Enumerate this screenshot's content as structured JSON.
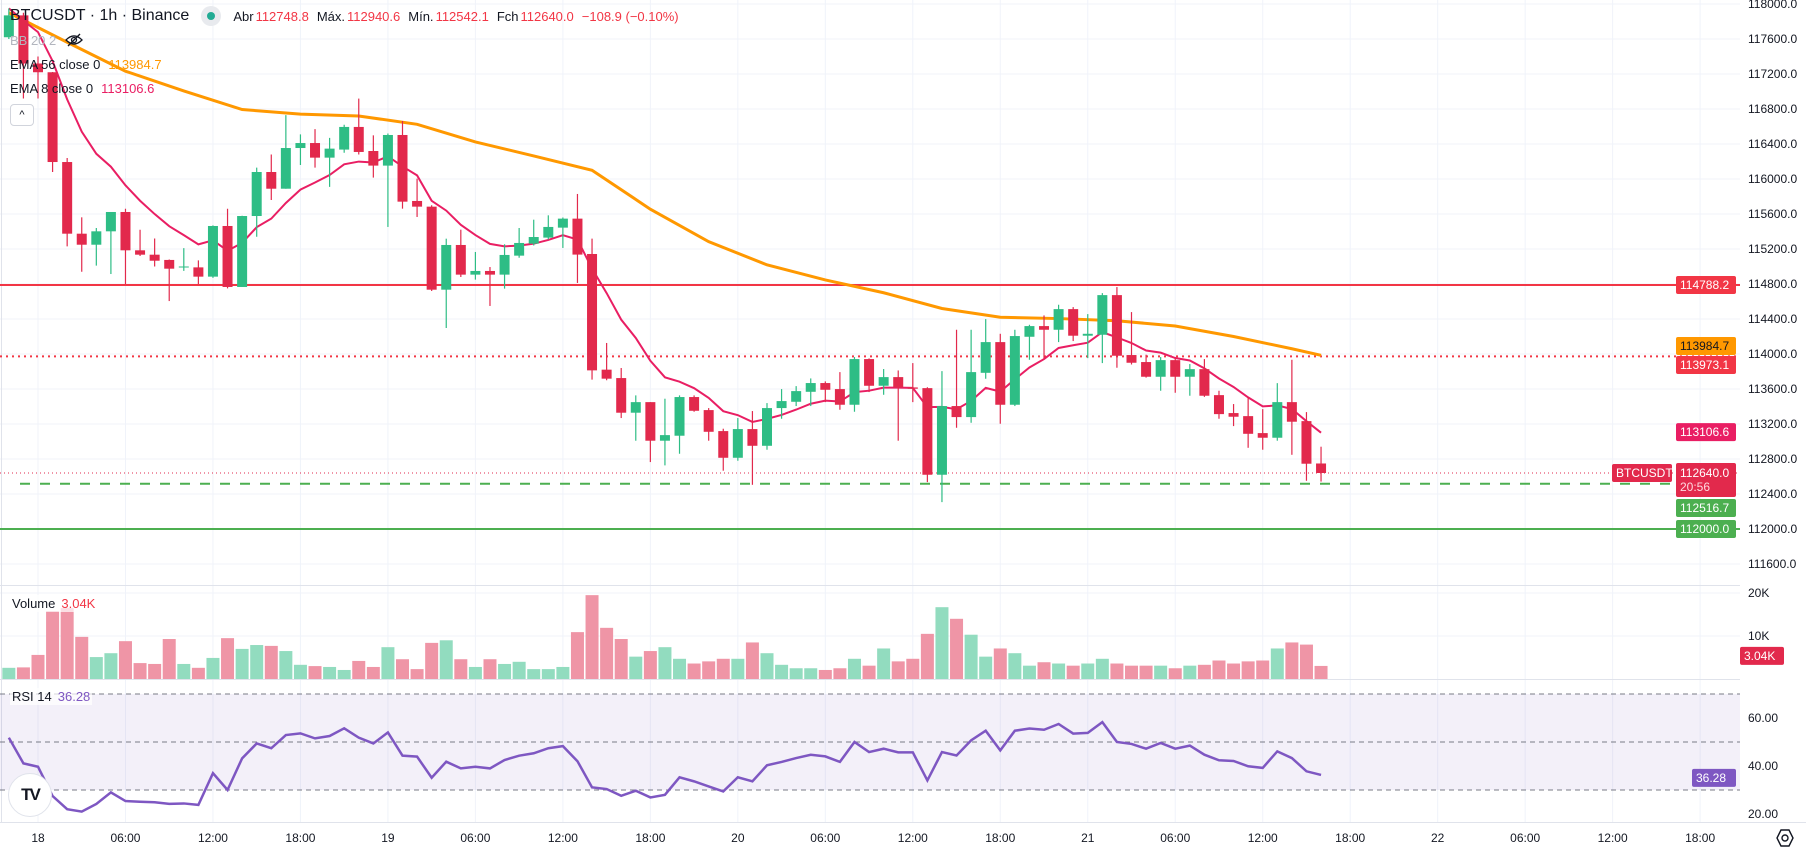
{
  "header": {
    "symbol_title": "BTCUSDT · 1h · Binance",
    "ohlc": [
      {
        "label": "Abr",
        "value": "112748.8"
      },
      {
        "label": "Máx.",
        "value": "112940.6"
      },
      {
        "label": "Mín.",
        "value": "112542.1"
      },
      {
        "label": "Fch",
        "value": "112640.0"
      }
    ],
    "change": "−108.9 (−0.10%)",
    "market_status": "open"
  },
  "indicators": {
    "bb": {
      "label": "BB 20 2",
      "hidden": true,
      "icon": "eye-off-icon"
    },
    "ema56": {
      "label": "EMA 56 close 0",
      "value": "113984.7",
      "color": "#ff9800"
    },
    "ema8": {
      "label": "EMA 8 close 0",
      "value": "113106.6",
      "color": "#e91e63"
    },
    "collapse_icon": "chevron-up-icon"
  },
  "volume_pane": {
    "label": "Volume",
    "value": "3.04K",
    "ticks": [
      "20K",
      "10K"
    ],
    "tag": "3.04K"
  },
  "rsi_pane": {
    "label": "RSI 14",
    "value": "36.28",
    "ticks": [
      "60.00",
      "40.00",
      "20.00"
    ],
    "tag": "36.28",
    "levels": [
      70,
      50,
      30
    ],
    "color": "#7e57c2"
  },
  "price_tags": {
    "resistance": "114788.2",
    "ema56": "113984.7",
    "dotted_level": "113973.1",
    "ema8": "113106.6",
    "symbol": "BTCUSDT",
    "last": "112640.0",
    "countdown": "20:56",
    "support_dashed": "112516.7",
    "support": "112000.0"
  },
  "colors": {
    "up": "#2ebd85",
    "down": "#e2294c",
    "up_volume": "#92dcbf",
    "down_volume": "#ef95a6",
    "resistance": "#f23645",
    "support": "#4caf50",
    "ema8_tag": "#e91e63",
    "ema56": "#ff9800"
  },
  "time_axis": [
    "18",
    "06:00",
    "12:00",
    "18:00",
    "19",
    "06:00",
    "12:00",
    "18:00",
    "20",
    "06:00",
    "12:00",
    "18:00",
    "21",
    "06:00",
    "12:00",
    "18:00",
    "22",
    "06:00",
    "12:00",
    "18:00"
  ],
  "chart_data": {
    "type": "candlestick",
    "interval": "1h",
    "ylim": [
      111450,
      118050
    ],
    "y_ticks": [
      "118000.0",
      "117600.0",
      "117200.0",
      "116800.0",
      "116400.0",
      "116000.0",
      "115600.0",
      "115200.0",
      "114800.0",
      "114400.0",
      "114000.0",
      "113600.0",
      "113200.0",
      "112800.0",
      "112400.0",
      "112000.0",
      "111600.0"
    ],
    "grid": true,
    "horizontal_lines": [
      {
        "price": 114788.2,
        "style": "solid",
        "color": "#f23645"
      },
      {
        "price": 113973.1,
        "style": "dotted",
        "color": "#f23645"
      },
      {
        "price": 112516.7,
        "style": "dashed",
        "color": "#4caf50"
      },
      {
        "price": 112000.0,
        "style": "solid",
        "color": "#4caf50"
      }
    ],
    "columns": [
      "time",
      "open",
      "high",
      "low",
      "close",
      "volume_k",
      "rsi"
    ],
    "candles": [
      [
        "17 22:00",
        117620,
        117950,
        117600,
        117870,
        2.6,
        51.8
      ],
      [
        "17 23:00",
        117870,
        117900,
        116920,
        117320,
        2.7,
        41.1
      ],
      [
        "18 00:00",
        117320,
        117400,
        116920,
        117220,
        5.6,
        39.7
      ],
      [
        "18 01:00",
        117220,
        117223,
        116080,
        116194,
        15.8,
        27.5
      ],
      [
        "18 02:00",
        116194,
        116240,
        115230,
        115375,
        16.5,
        22.0
      ],
      [
        "18 03:00",
        115375,
        115562,
        114940,
        115249,
        9.8,
        21.0
      ],
      [
        "18 04:00",
        115249,
        115440,
        115010,
        115402,
        5.1,
        24.2
      ],
      [
        "18 05:00",
        115402,
        115623,
        114914,
        115623,
        6.0,
        29.0
      ],
      [
        "18 06:00",
        115623,
        115660,
        114800,
        115185,
        8.8,
        25.4
      ],
      [
        "18 07:00",
        115185,
        115420,
        115120,
        115135,
        3.7,
        25.1
      ],
      [
        "18 08:00",
        115135,
        115320,
        115000,
        115066,
        3.5,
        24.9
      ],
      [
        "18 09:00",
        115075,
        115080,
        114605,
        114975,
        9.3,
        24.2
      ],
      [
        "18 10:00",
        114990,
        115210,
        114950,
        115000,
        3.5,
        24.4
      ],
      [
        "18 11:00",
        114990,
        115070,
        114800,
        114884,
        2.6,
        23.8
      ],
      [
        "18 12:00",
        114884,
        115470,
        114870,
        115463,
        4.9,
        37.0
      ],
      [
        "18 13:00",
        115463,
        115660,
        114750,
        114766,
        9.5,
        30.0
      ],
      [
        "18 14:00",
        114766,
        115580,
        114766,
        115577,
        7.0,
        43.2
      ],
      [
        "18 15:00",
        115577,
        116130,
        115340,
        116080,
        7.9,
        49.4
      ],
      [
        "18 16:00",
        116080,
        116280,
        115760,
        115889,
        7.7,
        47.4
      ],
      [
        "18 17:00",
        115889,
        116730,
        115889,
        116354,
        6.5,
        52.9
      ],
      [
        "18 18:00",
        116354,
        116510,
        116160,
        116411,
        3.3,
        53.6
      ],
      [
        "18 19:00",
        116411,
        116570,
        116130,
        116244,
        3.0,
        51.5
      ],
      [
        "18 20:00",
        116244,
        116470,
        115910,
        116347,
        2.8,
        52.5
      ],
      [
        "18 21:00",
        116336,
        116620,
        116300,
        116595,
        2.1,
        55.7
      ],
      [
        "18 22:00",
        116595,
        116919,
        116280,
        116309,
        4.2,
        51.8
      ],
      [
        "18 23:00",
        116320,
        116499,
        116016,
        116153,
        2.8,
        49.4
      ],
      [
        "19 00:00",
        116153,
        116520,
        115452,
        116503,
        7.4,
        54.0
      ],
      [
        "19 01:00",
        116503,
        116663,
        115661,
        115741,
        4.6,
        44.3
      ],
      [
        "19 02:00",
        115749,
        116004,
        115566,
        115684,
        2.3,
        43.9
      ],
      [
        "19 03:00",
        115684,
        115700,
        114720,
        114735,
        8.4,
        35.1
      ],
      [
        "19 04:00",
        114735,
        115318,
        114297,
        115246,
        9.0,
        41.8
      ],
      [
        "19 05:00",
        115246,
        115421,
        114880,
        114907,
        4.6,
        39.0
      ],
      [
        "19 06:00",
        114907,
        115166,
        114850,
        114949,
        2.8,
        39.7
      ],
      [
        "19 07:00",
        114949,
        114994,
        114549,
        114907,
        4.6,
        39.0
      ],
      [
        "19 08:00",
        114907,
        115254,
        114747,
        115132,
        3.5,
        42.5
      ],
      [
        "19 09:00",
        115124,
        115440,
        115100,
        115269,
        4.0,
        44.3
      ],
      [
        "19 10:00",
        115261,
        115535,
        115240,
        115337,
        2.3,
        45.3
      ],
      [
        "19 11:00",
        115330,
        115585,
        115310,
        115452,
        2.3,
        47.4
      ],
      [
        "19 12:00",
        115444,
        115560,
        115212,
        115547,
        2.8,
        48.3
      ],
      [
        "19 13:00",
        115547,
        115829,
        114812,
        115136,
        10.9,
        42.0
      ],
      [
        "19 14:00",
        115143,
        115318,
        113707,
        113813,
        19.5,
        31.1
      ],
      [
        "19 15:00",
        113821,
        114126,
        113700,
        113718,
        11.9,
        30.4
      ],
      [
        "19 16:00",
        113725,
        113840,
        113268,
        113329,
        9.3,
        27.6
      ],
      [
        "19 17:00",
        113329,
        113527,
        113009,
        113450,
        5.2,
        29.7
      ],
      [
        "19 18:00",
        113450,
        113450,
        112765,
        113009,
        6.5,
        26.9
      ],
      [
        "19 19:00",
        113009,
        113489,
        112727,
        113073,
        7.4,
        28.0
      ],
      [
        "19 20:00",
        113066,
        113527,
        112860,
        113508,
        4.7,
        35.3
      ],
      [
        "19 21:00",
        113508,
        113527,
        113340,
        113351,
        3.6,
        33.6
      ],
      [
        "19 22:00",
        113359,
        113382,
        113009,
        113111,
        4.1,
        31.5
      ],
      [
        "19 23:00",
        113119,
        113146,
        112666,
        112814,
        4.7,
        29.4
      ],
      [
        "20 00:00",
        112814,
        113268,
        112780,
        113142,
        4.7,
        35.3
      ],
      [
        "20 01:00",
        113142,
        113348,
        112505,
        112951,
        8.5,
        33.6
      ],
      [
        "20 02:00",
        112951,
        113439,
        112906,
        113382,
        6.0,
        40.3
      ],
      [
        "20 03:00",
        113382,
        113599,
        113260,
        113462,
        3.3,
        41.7
      ],
      [
        "20 04:00",
        113454,
        113633,
        113405,
        113576,
        2.5,
        43.3
      ],
      [
        "20 05:00",
        113568,
        113721,
        113405,
        113668,
        2.5,
        44.7
      ],
      [
        "20 06:00",
        113668,
        113687,
        113450,
        113591,
        2.1,
        44.0
      ],
      [
        "20 07:00",
        113599,
        113793,
        113363,
        113420,
        2.5,
        41.7
      ],
      [
        "20 08:00",
        113420,
        113965,
        113340,
        113942,
        4.7,
        50.0
      ],
      [
        "20 09:00",
        113942,
        113950,
        113565,
        113637,
        3.1,
        45.8
      ],
      [
        "20 10:00",
        113637,
        113828,
        113534,
        113736,
        7.1,
        47.2
      ],
      [
        "20 11:00",
        113736,
        113812,
        113009,
        113618,
        4.1,
        45.7
      ],
      [
        "20 12:00",
        113618,
        113896,
        113450,
        113603,
        4.7,
        45.7
      ],
      [
        "20 13:00",
        113610,
        113620,
        112536,
        112620,
        10.5,
        34.0
      ],
      [
        "20 14:00",
        112620,
        113805,
        112307,
        113405,
        16.7,
        45.8
      ],
      [
        "20 15:00",
        113405,
        114277,
        113157,
        113279,
        14.0,
        44.4
      ],
      [
        "20 16:00",
        113279,
        114277,
        113214,
        113793,
        10.3,
        50.7
      ],
      [
        "20 17:00",
        113785,
        114399,
        113717,
        114136,
        5.2,
        54.7
      ],
      [
        "20 18:00",
        114136,
        114231,
        113203,
        113420,
        7.1,
        46.5
      ],
      [
        "20 19:00",
        113420,
        114277,
        113405,
        114205,
        6.0,
        54.7
      ],
      [
        "20 20:00",
        114197,
        114334,
        113934,
        114319,
        3.1,
        55.6
      ],
      [
        "20 21:00",
        114319,
        114441,
        113946,
        114277,
        3.9,
        55.1
      ],
      [
        "20 22:00",
        114277,
        114563,
        114136,
        114513,
        3.6,
        57.5
      ],
      [
        "20 23:00",
        114513,
        114536,
        114148,
        114209,
        3.1,
        53.5
      ],
      [
        "21 00:00",
        114209,
        114456,
        113953,
        114231,
        3.6,
        53.8
      ],
      [
        "21 01:00",
        114220,
        114696,
        113896,
        114673,
        4.7,
        58.3
      ],
      [
        "21 02:00",
        114673,
        114765,
        113843,
        113980,
        3.6,
        50.0
      ],
      [
        "21 03:00",
        113988,
        114479,
        113880,
        113900,
        3.1,
        49.2
      ],
      [
        "21 04:00",
        113908,
        113992,
        113730,
        113740,
        3.1,
        47.2
      ],
      [
        "21 05:00",
        113740,
        113965,
        113580,
        113930,
        3.1,
        49.6
      ],
      [
        "21 06:00",
        113930,
        113950,
        113557,
        113740,
        2.5,
        47.2
      ],
      [
        "21 07:00",
        113740,
        113885,
        113523,
        113827,
        3.1,
        48.5
      ],
      [
        "21 08:00",
        113827,
        113942,
        113510,
        113523,
        3.3,
        44.7
      ],
      [
        "21 09:00",
        113530,
        113580,
        113260,
        113313,
        4.3,
        42.4
      ],
      [
        "21 10:00",
        113325,
        113428,
        113176,
        113283,
        3.6,
        42.1
      ],
      [
        "21 11:00",
        113290,
        113508,
        112928,
        113088,
        4.1,
        39.9
      ],
      [
        "21 12:00",
        113096,
        113370,
        112906,
        113043,
        4.3,
        39.2
      ],
      [
        "21 13:00",
        113043,
        113667,
        113009,
        113450,
        7.1,
        46.1
      ],
      [
        "21 14:00",
        113450,
        113934,
        112848,
        113226,
        8.5,
        43.3
      ],
      [
        "21 15:00",
        113233,
        113336,
        112551,
        112746,
        8.0,
        37.8
      ],
      [
        "21 16:00",
        112748.8,
        112940.6,
        112542.1,
        112640.0,
        3.04,
        36.28
      ]
    ],
    "ema56_points": [
      [
        "17 22:00",
        117900
      ],
      [
        "18 02:00",
        117563
      ],
      [
        "18 06:00",
        117232
      ],
      [
        "18 10:00",
        117006
      ],
      [
        "18 14:00",
        116794
      ],
      [
        "18 18:00",
        116741
      ],
      [
        "18 22:00",
        116720
      ],
      [
        "19 02:00",
        116625
      ],
      [
        "19 06:00",
        116423
      ],
      [
        "19 10:00",
        116264
      ],
      [
        "19 14:00",
        116100
      ],
      [
        "19 18:00",
        115655
      ],
      [
        "19 22:00",
        115284
      ],
      [
        "20 02:00",
        115019
      ],
      [
        "20 06:00",
        114846
      ],
      [
        "20 10:00",
        114700
      ],
      [
        "20 14:00",
        114520
      ],
      [
        "20 18:00",
        114420
      ],
      [
        "20 22:00",
        114405
      ],
      [
        "21 02:00",
        114380
      ],
      [
        "21 06:00",
        114320
      ],
      [
        "21 10:00",
        114200
      ],
      [
        "21 14:00",
        114060
      ],
      [
        "21 16:00",
        113985
      ]
    ]
  }
}
